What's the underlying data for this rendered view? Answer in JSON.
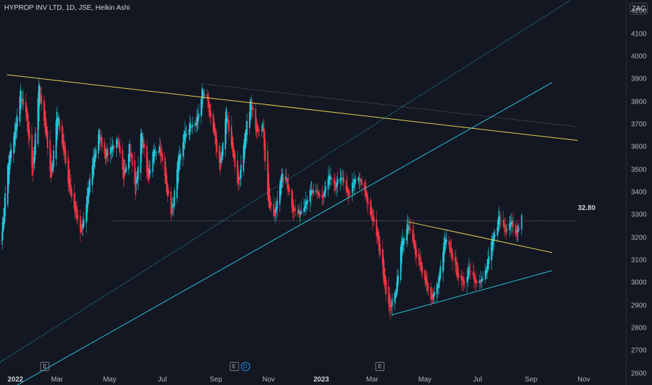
{
  "header": {
    "symbol_title": "HYPROP INV LTD, 1D, JSE, Heikin Ashi",
    "currency": "ZAC"
  },
  "colors": {
    "background": "#131722",
    "up": "#26c6da",
    "down": "#f23645",
    "trend_yellow": "#e8d44d",
    "channel_cyan": "#26c6da",
    "dotted_gray": "#787b86"
  },
  "annotation": {
    "price_label": "32.80"
  },
  "events": [
    {
      "type": "earnings",
      "label": "E",
      "date": "2022-02-15"
    },
    {
      "type": "earnings",
      "label": "E",
      "date": "2022-09-22"
    },
    {
      "type": "dividend",
      "label": "D",
      "date": "2022-10-05"
    },
    {
      "type": "earnings",
      "label": "E",
      "date": "2023-03-10"
    }
  ],
  "chart_data": {
    "type": "candlestick",
    "style": "Heikin Ashi",
    "title": "HYPROP INV LTD, 1D, JSE, Heikin Ashi",
    "x_axis": {
      "range": [
        "2021-12-25",
        "2023-12-20"
      ],
      "ticks": [
        {
          "label": "2022",
          "date": "2022-01-01",
          "year": true
        },
        {
          "label": "Mar",
          "date": "2022-03-01"
        },
        {
          "label": "May",
          "date": "2022-05-01"
        },
        {
          "label": "Jul",
          "date": "2022-07-01"
        },
        {
          "label": "Sep",
          "date": "2022-09-01"
        },
        {
          "label": "Nov",
          "date": "2022-11-01"
        },
        {
          "label": "2023",
          "date": "2023-01-01",
          "year": true
        },
        {
          "label": "Mar",
          "date": "2023-03-01"
        },
        {
          "label": "May",
          "date": "2023-05-01"
        },
        {
          "label": "Jul",
          "date": "2023-07-01"
        },
        {
          "label": "Sep",
          "date": "2023-09-01"
        },
        {
          "label": "Nov",
          "date": "2023-11-01"
        }
      ]
    },
    "y_axis": {
      "range": [
        2550,
        4250
      ],
      "ticks": [
        "2600",
        "2700",
        "2800",
        "2900",
        "3000",
        "3100",
        "3200",
        "3300",
        "3400",
        "3500",
        "3600",
        "3700",
        "3800",
        "3900",
        "4000",
        "4100",
        "4200"
      ]
    },
    "price_path": [
      [
        "2021-12-27",
        3210
      ],
      [
        "2022-01-03",
        3520
      ],
      [
        "2022-01-10",
        3640
      ],
      [
        "2022-01-18",
        3840
      ],
      [
        "2022-01-25",
        3720
      ],
      [
        "2022-02-01",
        3470
      ],
      [
        "2022-02-08",
        3880
      ],
      [
        "2022-02-15",
        3700
      ],
      [
        "2022-02-22",
        3450
      ],
      [
        "2022-03-01",
        3760
      ],
      [
        "2022-03-08",
        3600
      ],
      [
        "2022-03-15",
        3430
      ],
      [
        "2022-03-22",
        3320
      ],
      [
        "2022-03-29",
        3210
      ],
      [
        "2022-04-04",
        3350
      ],
      [
        "2022-04-11",
        3530
      ],
      [
        "2022-04-19",
        3660
      ],
      [
        "2022-04-26",
        3560
      ],
      [
        "2022-05-03",
        3600
      ],
      [
        "2022-05-10",
        3620
      ],
      [
        "2022-05-17",
        3470
      ],
      [
        "2022-05-24",
        3610
      ],
      [
        "2022-05-31",
        3400
      ],
      [
        "2022-06-07",
        3680
      ],
      [
        "2022-06-14",
        3450
      ],
      [
        "2022-06-21",
        3580
      ],
      [
        "2022-06-28",
        3600
      ],
      [
        "2022-07-05",
        3440
      ],
      [
        "2022-07-12",
        3300
      ],
      [
        "2022-07-19",
        3520
      ],
      [
        "2022-07-26",
        3650
      ],
      [
        "2022-08-02",
        3690
      ],
      [
        "2022-08-09",
        3700
      ],
      [
        "2022-08-16",
        3840
      ],
      [
        "2022-08-23",
        3790
      ],
      [
        "2022-08-30",
        3650
      ],
      [
        "2022-09-06",
        3510
      ],
      [
        "2022-09-13",
        3760
      ],
      [
        "2022-09-20",
        3590
      ],
      [
        "2022-09-27",
        3430
      ],
      [
        "2022-10-04",
        3620
      ],
      [
        "2022-10-11",
        3800
      ],
      [
        "2022-10-18",
        3680
      ],
      [
        "2022-10-25",
        3700
      ],
      [
        "2022-11-01",
        3350
      ],
      [
        "2022-11-08",
        3290
      ],
      [
        "2022-11-15",
        3470
      ],
      [
        "2022-11-22",
        3450
      ],
      [
        "2022-11-29",
        3330
      ],
      [
        "2022-12-06",
        3300
      ],
      [
        "2022-12-13",
        3360
      ],
      [
        "2022-12-20",
        3400
      ],
      [
        "2023-01-03",
        3380
      ],
      [
        "2023-01-10",
        3470
      ],
      [
        "2023-01-17",
        3410
      ],
      [
        "2023-01-24",
        3480
      ],
      [
        "2023-01-31",
        3380
      ],
      [
        "2023-02-07",
        3440
      ],
      [
        "2023-02-14",
        3460
      ],
      [
        "2023-02-21",
        3390
      ],
      [
        "2023-02-28",
        3300
      ],
      [
        "2023-03-07",
        3200
      ],
      [
        "2023-03-14",
        3040
      ],
      [
        "2023-03-21",
        2880
      ],
      [
        "2023-03-28",
        2960
      ],
      [
        "2023-04-04",
        3180
      ],
      [
        "2023-04-12",
        3250
      ],
      [
        "2023-04-19",
        3150
      ],
      [
        "2023-04-26",
        3080
      ],
      [
        "2023-05-03",
        2980
      ],
      [
        "2023-05-10",
        2930
      ],
      [
        "2023-05-17",
        3010
      ],
      [
        "2023-05-24",
        3190
      ],
      [
        "2023-05-31",
        3140
      ],
      [
        "2023-06-07",
        3050
      ],
      [
        "2023-06-14",
        2990
      ],
      [
        "2023-06-21",
        3070
      ],
      [
        "2023-06-28",
        3020
      ],
      [
        "2023-07-05",
        3000
      ],
      [
        "2023-07-12",
        3070
      ],
      [
        "2023-07-19",
        3200
      ],
      [
        "2023-07-26",
        3290
      ],
      [
        "2023-08-02",
        3240
      ],
      [
        "2023-08-09",
        3280
      ],
      [
        "2023-08-16",
        3220
      ],
      [
        "2023-08-21",
        3300
      ]
    ],
    "drawings": [
      {
        "name": "major-downtrend",
        "color": "#e8d44d",
        "style": "solid",
        "from": [
          "2022-01-02",
          3920
        ],
        "to": [
          "2023-10-25",
          3630
        ]
      },
      {
        "name": "upper-dotted-trend",
        "color": "#787b86",
        "style": "dotted",
        "from": [
          "2022-08-17",
          3880
        ],
        "to": [
          "2023-10-25",
          3690
        ]
      },
      {
        "name": "horizontal-dotted-level",
        "color": "#787b86",
        "style": "dotted",
        "from": [
          "2022-05-04",
          3275
        ],
        "to": [
          "2023-10-25",
          3275
        ]
      },
      {
        "name": "channel-lower-line",
        "color": "#26c6da",
        "style": "solid",
        "from": [
          "2022-01-14",
          2550
        ],
        "to": [
          "2023-09-25",
          3885
        ]
      },
      {
        "name": "channel-dotted-line",
        "color": "#26c6da",
        "style": "dotted",
        "from": [
          "2021-12-25",
          2650
        ],
        "to": [
          "2023-10-25",
          4270
        ]
      },
      {
        "name": "triangle-upper",
        "color": "#e8d44d",
        "style": "solid",
        "from": [
          "2023-04-12",
          3270
        ],
        "to": [
          "2023-09-25",
          3135
        ]
      },
      {
        "name": "triangle-lower",
        "color": "#26c6da",
        "style": "solid",
        "from": [
          "2023-03-24",
          2860
        ],
        "to": [
          "2023-09-25",
          3055
        ]
      }
    ]
  }
}
